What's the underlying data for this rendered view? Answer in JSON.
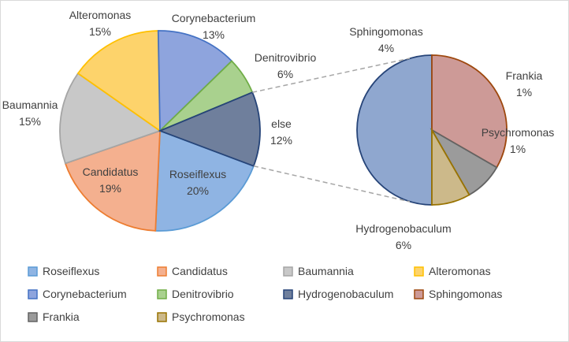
{
  "chart_data": {
    "type": "pie",
    "subtype": "pie-of-pie",
    "title": "",
    "slices": [
      {
        "name": "Roseiflexus",
        "value": 20,
        "label": "20%",
        "color": "#8fb4e3"
      },
      {
        "name": "Candidatus",
        "value": 19,
        "label": "19%",
        "color": "#f4b08f"
      },
      {
        "name": "Baumannia",
        "value": 15,
        "label": "15%",
        "color": "#c8c8c8"
      },
      {
        "name": "Alteromonas",
        "value": 15,
        "label": "15%",
        "color": "#fdd36b"
      },
      {
        "name": "Corynebacterium",
        "value": 13,
        "label": "13%",
        "color": "#8ea4dd"
      },
      {
        "name": "Denitrovibrio",
        "value": 6,
        "label": "6%",
        "color": "#a9d18e"
      },
      {
        "name": "else",
        "value": 12,
        "label": "12%",
        "color": "#6f7f9c",
        "aggregate": true
      }
    ],
    "secondary_slices": [
      {
        "name": "Hydrogenobaculum",
        "value": 6,
        "label": "6%",
        "color": "#8fa7cf"
      },
      {
        "name": "Sphingomonas",
        "value": 4,
        "label": "4%",
        "color": "#cd9a97"
      },
      {
        "name": "Frankia",
        "value": 1,
        "label": "1%",
        "color": "#9b9b9b"
      },
      {
        "name": "Psychromonas",
        "value": 1,
        "label": "1%",
        "color": "#ccb98a"
      }
    ],
    "legend": {
      "placement": "bottom",
      "entries": [
        {
          "name": "Roseiflexus",
          "color": "#8fb4e3",
          "border": "#5b9bd5"
        },
        {
          "name": "Candidatus",
          "color": "#f4b08f",
          "border": "#ed7d31"
        },
        {
          "name": "Baumannia",
          "color": "#c8c8c8",
          "border": "#a5a5a5"
        },
        {
          "name": "Alteromonas",
          "color": "#fdd36b",
          "border": "#ffc000"
        },
        {
          "name": "Corynebacterium",
          "color": "#8ea4dd",
          "border": "#4472c4"
        },
        {
          "name": "Denitrovibrio",
          "color": "#a9d18e",
          "border": "#70ad47"
        },
        {
          "name": "Hydrogenobaculum",
          "color": "#6f7f9c",
          "border": "#264478"
        },
        {
          "name": "Sphingomonas",
          "color": "#cd9a97",
          "border": "#9e480e"
        },
        {
          "name": "Frankia",
          "color": "#9b9b9b",
          "border": "#636363"
        },
        {
          "name": "Psychromonas",
          "color": "#ccb98a",
          "border": "#997300"
        }
      ]
    }
  }
}
